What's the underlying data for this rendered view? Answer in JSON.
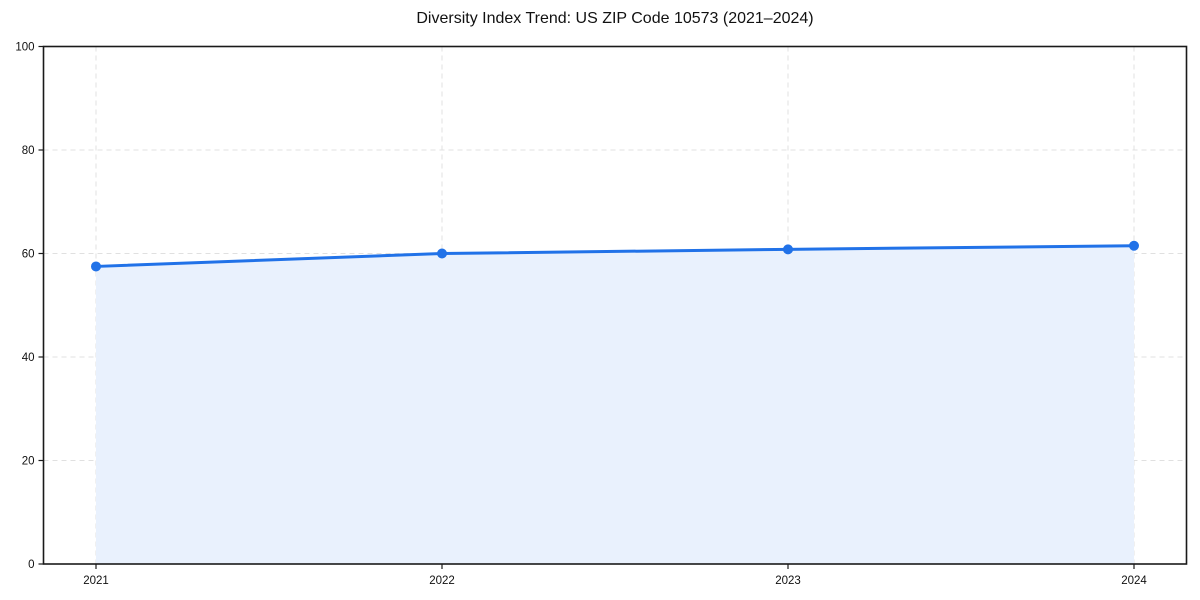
{
  "chart_data": {
    "type": "area",
    "title": "Diversity Index Trend: US ZIP Code 10573 (2021–2024)",
    "x": [
      "2021",
      "2022",
      "2023",
      "2024"
    ],
    "series": [
      {
        "name": "Diversity Index",
        "values": [
          57.5,
          60.0,
          60.8,
          61.5
        ]
      }
    ],
    "xlabel": "",
    "ylabel": "",
    "ylim": [
      0,
      100
    ],
    "yticks": [
      0,
      20,
      40,
      60,
      80,
      100
    ],
    "grid": "dashed gridlines on both axes",
    "legend_position": "none",
    "marker": "circle",
    "colors": {
      "line": "#2172e8",
      "marker": "#2172e8",
      "area_fill": "#e9f1fd",
      "gridline": "#e0e0e0",
      "frame": "#1a1a1a",
      "tick_text": "#111111",
      "background": "#ffffff"
    }
  }
}
